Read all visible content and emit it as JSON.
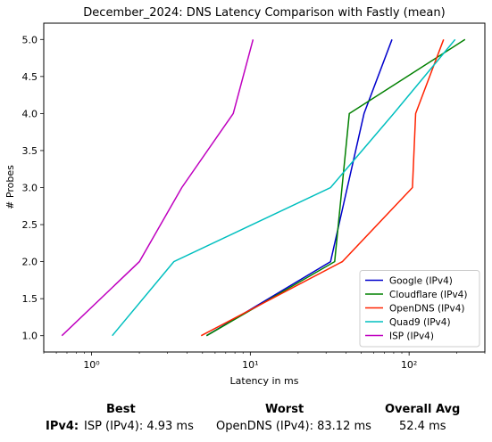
{
  "chart_data": {
    "type": "line",
    "title": "December_2024: DNS Latency Comparison with Fastly (mean)",
    "xlabel": "Latency in ms",
    "ylabel": "# Probes",
    "xscale": "log",
    "xlim": [
      0.5,
      300
    ],
    "ylim": [
      0.78,
      5.22
    ],
    "xticks": [
      {
        "value": 1,
        "label": "10⁰"
      },
      {
        "value": 10,
        "label": "10¹"
      },
      {
        "value": 100,
        "label": "10²"
      }
    ],
    "yticks": [
      {
        "value": 1.0,
        "label": "1.0"
      },
      {
        "value": 1.5,
        "label": "1.5"
      },
      {
        "value": 2.0,
        "label": "2.0"
      },
      {
        "value": 2.5,
        "label": "2.5"
      },
      {
        "value": 3.0,
        "label": "3.0"
      },
      {
        "value": 3.5,
        "label": "3.5"
      },
      {
        "value": 4.0,
        "label": "4.0"
      },
      {
        "value": 4.5,
        "label": "4.5"
      },
      {
        "value": 5.0,
        "label": "5.0"
      }
    ],
    "grid": false,
    "legend_position": "lower-right",
    "series": [
      {
        "name": "Google (IPv4)",
        "color": "#0000cc",
        "x": [
          5.3,
          32,
          52,
          78
        ],
        "y": [
          1,
          2,
          4,
          5
        ]
      },
      {
        "name": "Cloudflare (IPv4)",
        "color": "#008000",
        "x": [
          5.3,
          34,
          42,
          225
        ],
        "y": [
          1,
          2,
          4,
          5
        ]
      },
      {
        "name": "OpenDNS (IPv4)",
        "color": "#ff2200",
        "x": [
          4.9,
          38,
          105,
          110,
          165
        ],
        "y": [
          1,
          2,
          3,
          4,
          5
        ]
      },
      {
        "name": "Quad9 (IPv4)",
        "color": "#00bfbf",
        "x": [
          1.35,
          3.3,
          32,
          80,
          195
        ],
        "y": [
          1,
          2,
          3,
          4,
          5
        ]
      },
      {
        "name": "ISP (IPv4)",
        "color": "#bf00bf",
        "x": [
          0.65,
          2.0,
          3.7,
          7.8,
          10.4
        ],
        "y": [
          1,
          2,
          3,
          4,
          5
        ]
      }
    ]
  },
  "summary": {
    "headers": {
      "best": "Best",
      "worst": "Worst",
      "overall": "Overall Avg"
    },
    "row_label": "IPv4:",
    "best": "ISP (IPv4): 4.93 ms",
    "worst": "OpenDNS (IPv4): 83.12 ms",
    "overall": "52.4 ms"
  }
}
